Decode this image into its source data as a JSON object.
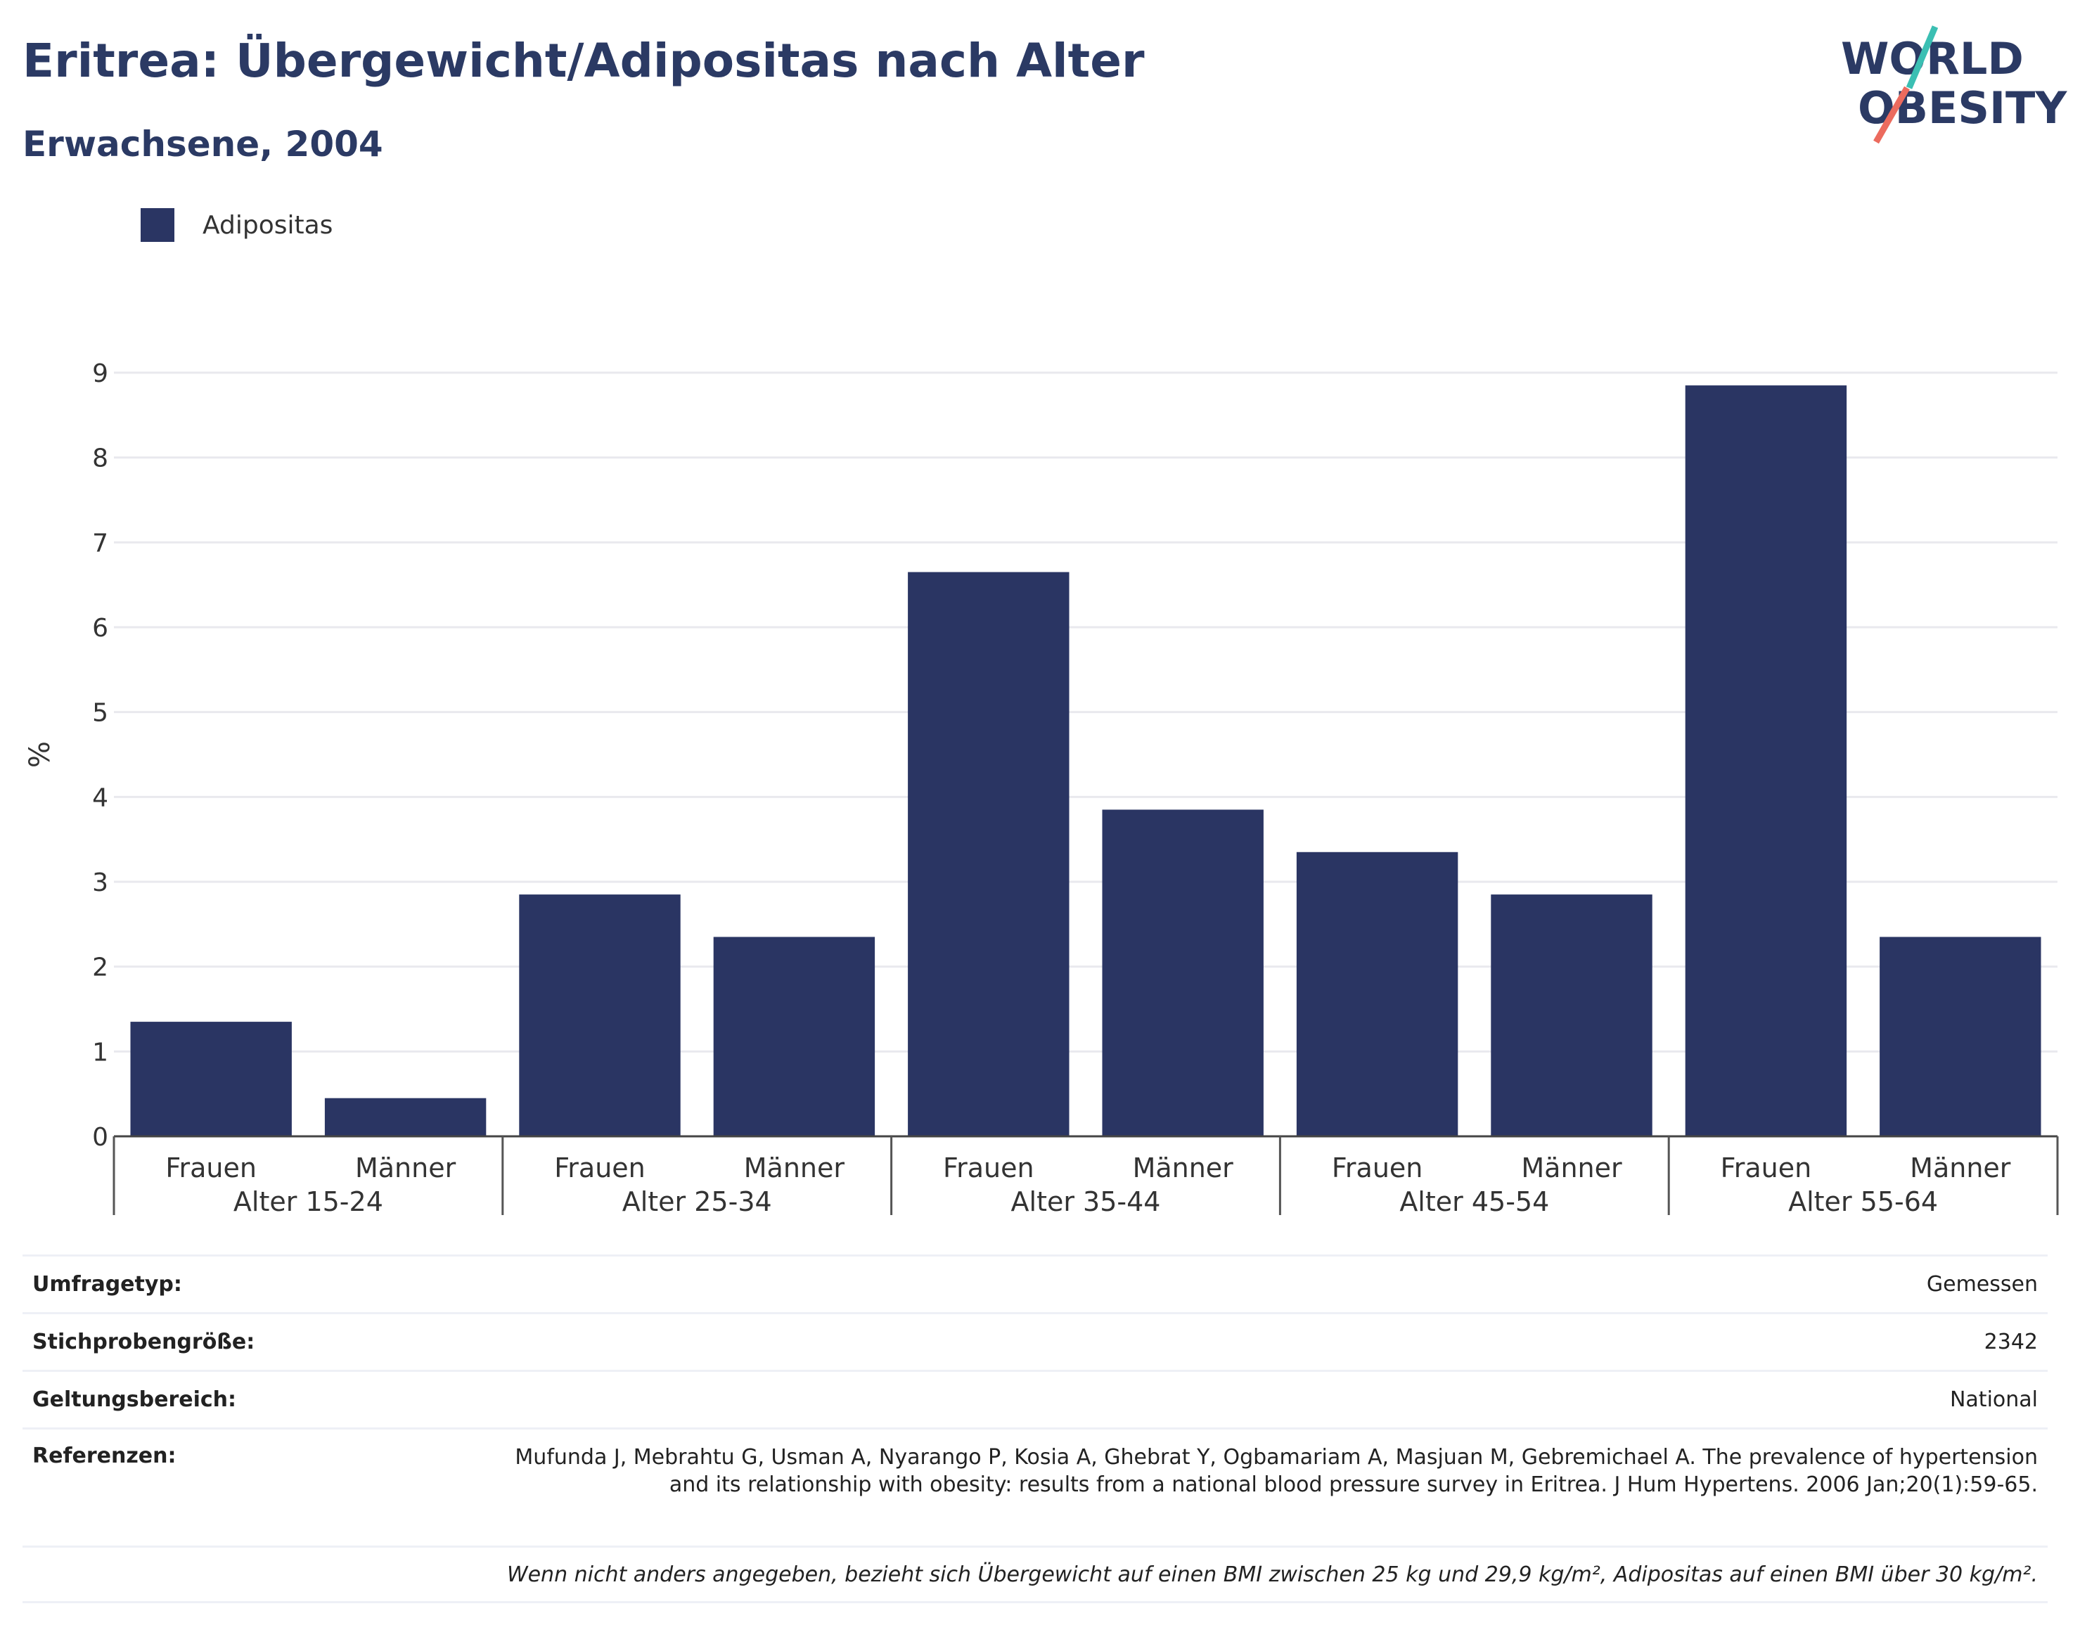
{
  "header": {
    "title": "Eritrea: Übergewicht/Adipositas nach Alter",
    "subtitle": "Erwachsene, 2004"
  },
  "logo": {
    "line1": "WORLD",
    "line2": "OBESITY"
  },
  "legend": {
    "label": "Adipositas",
    "color": "#2a3563"
  },
  "chart_data": {
    "type": "bar",
    "ylabel": "%",
    "ylim": [
      0,
      9
    ],
    "yticks": [
      "0",
      "1",
      "2",
      "3",
      "4",
      "5",
      "6",
      "7",
      "8",
      "9"
    ],
    "grid": true,
    "legend_position": "top-left",
    "groups": [
      "Alter 15-24",
      "Alter 25-34",
      "Alter 35-44",
      "Alter 45-54",
      "Alter 55-64"
    ],
    "categories": [
      "Frauen",
      "Männer",
      "Frauen",
      "Männer",
      "Frauen",
      "Männer",
      "Frauen",
      "Männer",
      "Frauen",
      "Männer"
    ],
    "series": [
      {
        "name": "Adipositas",
        "color": "#2a3563",
        "values": [
          1.35,
          0.45,
          2.85,
          2.35,
          6.65,
          3.85,
          3.35,
          2.85,
          8.85,
          2.35
        ]
      }
    ]
  },
  "info": {
    "rows": [
      {
        "key": "Umfragetyp:",
        "value": "Gemessen"
      },
      {
        "key": "Stichprobengröße:",
        "value": "2342"
      },
      {
        "key": "Geltungsbereich:",
        "value": "National"
      },
      {
        "key": "Referenzen:",
        "value": "Mufunda J, Mebrahtu G, Usman A, Nyarango P, Kosia A, Ghebrat Y, Ogbamariam A, Masjuan M, Gebremichael A. The prevalence of hypertension and its relationship with obesity: results from a national blood pressure survey in Eritrea. J Hum Hypertens. 2006 Jan;20(1):59-65."
      }
    ],
    "footnote": "Wenn nicht anders angegeben, bezieht sich Übergewicht auf einen BMI zwischen 25 kg und 29,9 kg/m², Adipositas auf einen BMI über 30 kg/m²."
  }
}
